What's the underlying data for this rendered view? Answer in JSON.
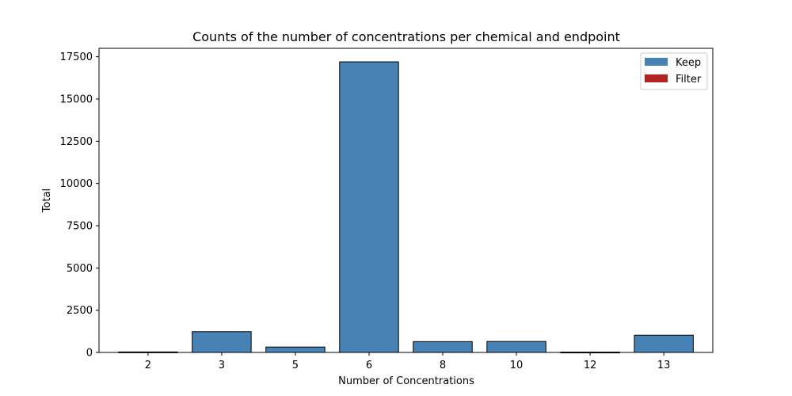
{
  "chart_data": {
    "type": "bar",
    "title": "Counts of the number of concentrations per chemical and endpoint",
    "xlabel": "Number of Concentrations",
    "ylabel": "Total",
    "categories": [
      "2",
      "3",
      "5",
      "6",
      "8",
      "10",
      "12",
      "13"
    ],
    "series": [
      {
        "name": "Keep",
        "values": [
          30,
          1230,
          320,
          17200,
          640,
          650,
          20,
          1020
        ]
      },
      {
        "name": "Filter",
        "values": [
          0,
          0,
          0,
          0,
          0,
          0,
          0,
          0
        ]
      }
    ],
    "ylim": [
      0,
      17500
    ],
    "yticks": [
      0,
      2500,
      5000,
      7500,
      10000,
      12500,
      15000,
      17500
    ],
    "grid": false,
    "legend_position": "top-right",
    "colors": {
      "keep": "#4682b4",
      "filter": "#b22222",
      "edge": "#000000"
    }
  }
}
